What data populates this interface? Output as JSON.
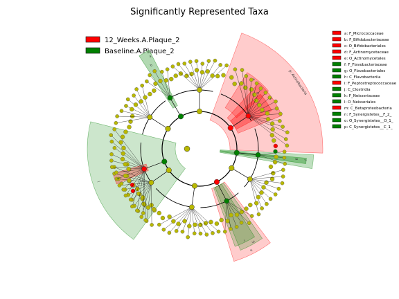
{
  "chart_data": {
    "type": "cladogram",
    "title": "Significantly Represented Taxa",
    "groups": [
      {
        "name": "12_Weeks.A.Plaque_2",
        "color": "#ff0000"
      },
      {
        "name": "Baseline.A.Plaque_2",
        "color": "#008000"
      }
    ],
    "node_colors": {
      "neutral": "#b8b800",
      "group_1": "#ff0000",
      "group_2": "#008000"
    },
    "taxa_legend": [
      {
        "label": "a: F_Micrococcaceae",
        "group": "12_Weeks.A.Plaque_2"
      },
      {
        "label": "b: F_Bifidobacteriaceae",
        "group": "12_Weeks.A.Plaque_2"
      },
      {
        "label": "c: O_Bifidobacteriales",
        "group": "12_Weeks.A.Plaque_2"
      },
      {
        "label": "d: F_Actinomycetaceae",
        "group": "12_Weeks.A.Plaque_2"
      },
      {
        "label": "e: O_Actinomycetales",
        "group": "12_Weeks.A.Plaque_2"
      },
      {
        "label": "f: F_Flavobacteriaceae",
        "group": "Baseline.A.Plaque_2"
      },
      {
        "label": "g: O_Flavobacteriales",
        "group": "Baseline.A.Plaque_2"
      },
      {
        "label": "h: C_Flavobacteriia",
        "group": "Baseline.A.Plaque_2"
      },
      {
        "label": "i: F_Peptostreptococcaceae",
        "group": "12_Weeks.A.Plaque_2"
      },
      {
        "label": "j: C_Clostridia",
        "group": "Baseline.A.Plaque_2"
      },
      {
        "label": "k: F_Neisseriaceae",
        "group": "Baseline.A.Plaque_2"
      },
      {
        "label": "l: O_Neisseriales",
        "group": "Baseline.A.Plaque_2"
      },
      {
        "label": "m: C_Betaproteobacteria",
        "group": "12_Weeks.A.Plaque_2"
      },
      {
        "label": "n: F_Synergistetes__F_2_",
        "group": "Baseline.A.Plaque_2"
      },
      {
        "label": "o: O_Synergistetes__O_1_",
        "group": "Baseline.A.Plaque_2"
      },
      {
        "label": "p: C_Synergistetes__C_1_",
        "group": "Baseline.A.Plaque_2"
      }
    ],
    "sector_labels": {
      "actino": "p: Actinobacteria",
      "flavo_a": "a",
      "flavo_b": "b",
      "red_c": "c",
      "red_d": "d",
      "red_e": "e",
      "green_f": "f",
      "green_g": "g",
      "bottom_h": "h",
      "bottom_i": "i",
      "bottom_m": "m",
      "left_j": "j",
      "left_k": "k"
    }
  }
}
